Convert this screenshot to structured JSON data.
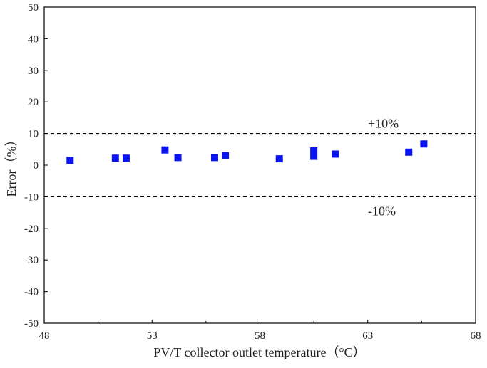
{
  "chart_data": {
    "type": "scatter",
    "xlabel": "PV/T collector outlet temperature（°C）",
    "ylabel": "Error（%）",
    "xlim": [
      48,
      68
    ],
    "ylim": [
      -50,
      50
    ],
    "x_ticks": [
      "48",
      "53",
      "58",
      "63",
      "68"
    ],
    "y_ticks": [
      "-50",
      "-40",
      "-30",
      "-20",
      "-10",
      "0",
      "10",
      "20",
      "30",
      "40",
      "50"
    ],
    "series": [
      {
        "marker": "square",
        "color": "#0a14f0",
        "points": [
          {
            "x": 49.2,
            "y": 1.5
          },
          {
            "x": 51.3,
            "y": 2.2
          },
          {
            "x": 51.8,
            "y": 2.2
          },
          {
            "x": 53.6,
            "y": 4.8
          },
          {
            "x": 54.2,
            "y": 2.4
          },
          {
            "x": 55.9,
            "y": 2.4
          },
          {
            "x": 56.4,
            "y": 3.0
          },
          {
            "x": 58.9,
            "y": 2.0
          },
          {
            "x": 60.5,
            "y": 2.8
          },
          {
            "x": 60.5,
            "y": 4.5
          },
          {
            "x": 61.5,
            "y": 3.5
          },
          {
            "x": 64.9,
            "y": 4.1
          },
          {
            "x": 65.6,
            "y": 6.7
          }
        ]
      }
    ],
    "reference_lines": [
      {
        "y": 10,
        "label": "+10%",
        "style": "dashed"
      },
      {
        "y": -10,
        "label": "-10%",
        "style": "dashed"
      }
    ],
    "grid": false,
    "legend": "none"
  }
}
